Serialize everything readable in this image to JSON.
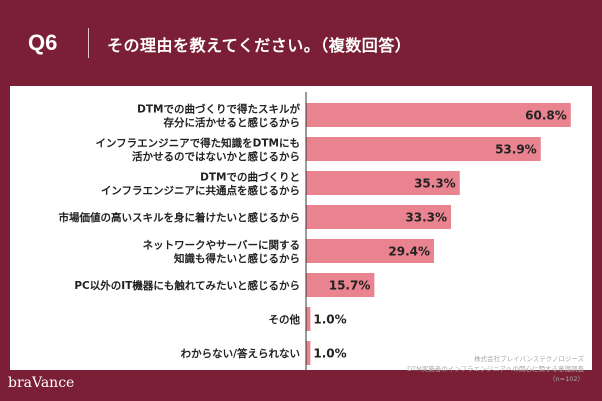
{
  "header": {
    "question_number": "Q6",
    "question_text": "その理由を教えてください。（複数回答）"
  },
  "brand": {
    "logo": "braVance"
  },
  "source": {
    "company": "株式会社ブレイバンステクノロジーズ",
    "survey": "DTM実施者のインフラエンジニアへの関心に関する意識調査",
    "sample": "（n=102）"
  },
  "colors": {
    "background": "#7a1f35",
    "panel": "#ffffff",
    "bar": "#e8838f",
    "axis": "#333333",
    "label": "#222222"
  },
  "chart_data": {
    "type": "bar",
    "orientation": "horizontal",
    "unit": "%",
    "categories": [
      [
        "DTMでの曲づくりで得たスキルが",
        "存分に活かせると感じるから"
      ],
      [
        "インフラエンジニアで得た知識をDTMにも",
        "活かせるのではないかと感じるから"
      ],
      [
        "DTMでの曲づくりと",
        "インフラエンジニアに共通点を感じるから"
      ],
      [
        "市場価値の高いスキルを身に着けたいと感じるから"
      ],
      [
        "ネットワークやサーバーに関する",
        "知識も得たいと感じるから"
      ],
      [
        "PC以外のIT機器にも触れてみたいと感じるから"
      ],
      [
        "その他"
      ],
      [
        "わからない/答えられない"
      ]
    ],
    "values": [
      60.8,
      53.9,
      35.3,
      33.3,
      29.4,
      15.7,
      1.0,
      1.0
    ],
    "value_labels": [
      "60.8%",
      "53.9%",
      "35.3%",
      "33.3%",
      "29.4%",
      "15.7%",
      "1.0%",
      "1.0%"
    ],
    "xlim": [
      0,
      62
    ]
  }
}
